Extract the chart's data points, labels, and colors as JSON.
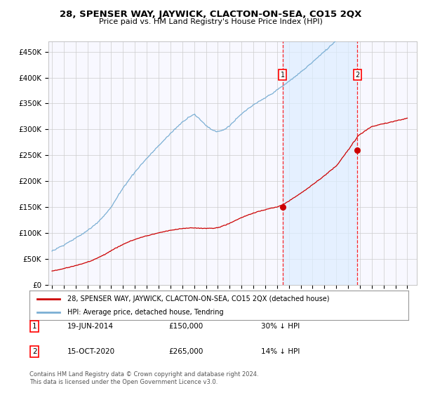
{
  "title": "28, SPENSER WAY, JAYWICK, CLACTON-ON-SEA, CO15 2QX",
  "subtitle": "Price paid vs. HM Land Registry's House Price Index (HPI)",
  "ylim": [
    0,
    470000
  ],
  "yticks": [
    0,
    50000,
    100000,
    150000,
    200000,
    250000,
    300000,
    350000,
    400000,
    450000
  ],
  "ytick_labels": [
    "£0",
    "£50K",
    "£100K",
    "£150K",
    "£200K",
    "£250K",
    "£300K",
    "£350K",
    "£400K",
    "£450K"
  ],
  "hpi_color": "#7bafd4",
  "price_color": "#cc0000",
  "shade_color": "#ddeeff",
  "marker1_year": 2014.47,
  "marker2_year": 2020.79,
  "marker1_price": 150000,
  "marker2_price": 265000,
  "legend_house": "28, SPENSER WAY, JAYWICK, CLACTON-ON-SEA, CO15 2QX (detached house)",
  "legend_hpi": "HPI: Average price, detached house, Tendring",
  "table_row1": [
    "1",
    "19-JUN-2014",
    "£150,000",
    "30% ↓ HPI"
  ],
  "table_row2": [
    "2",
    "15-OCT-2020",
    "£265,000",
    "14% ↓ HPI"
  ],
  "footer": "Contains HM Land Registry data © Crown copyright and database right 2024.\nThis data is licensed under the Open Government Licence v3.0.",
  "bg_color": "#ffffff",
  "year_start": 1995,
  "year_end": 2025
}
